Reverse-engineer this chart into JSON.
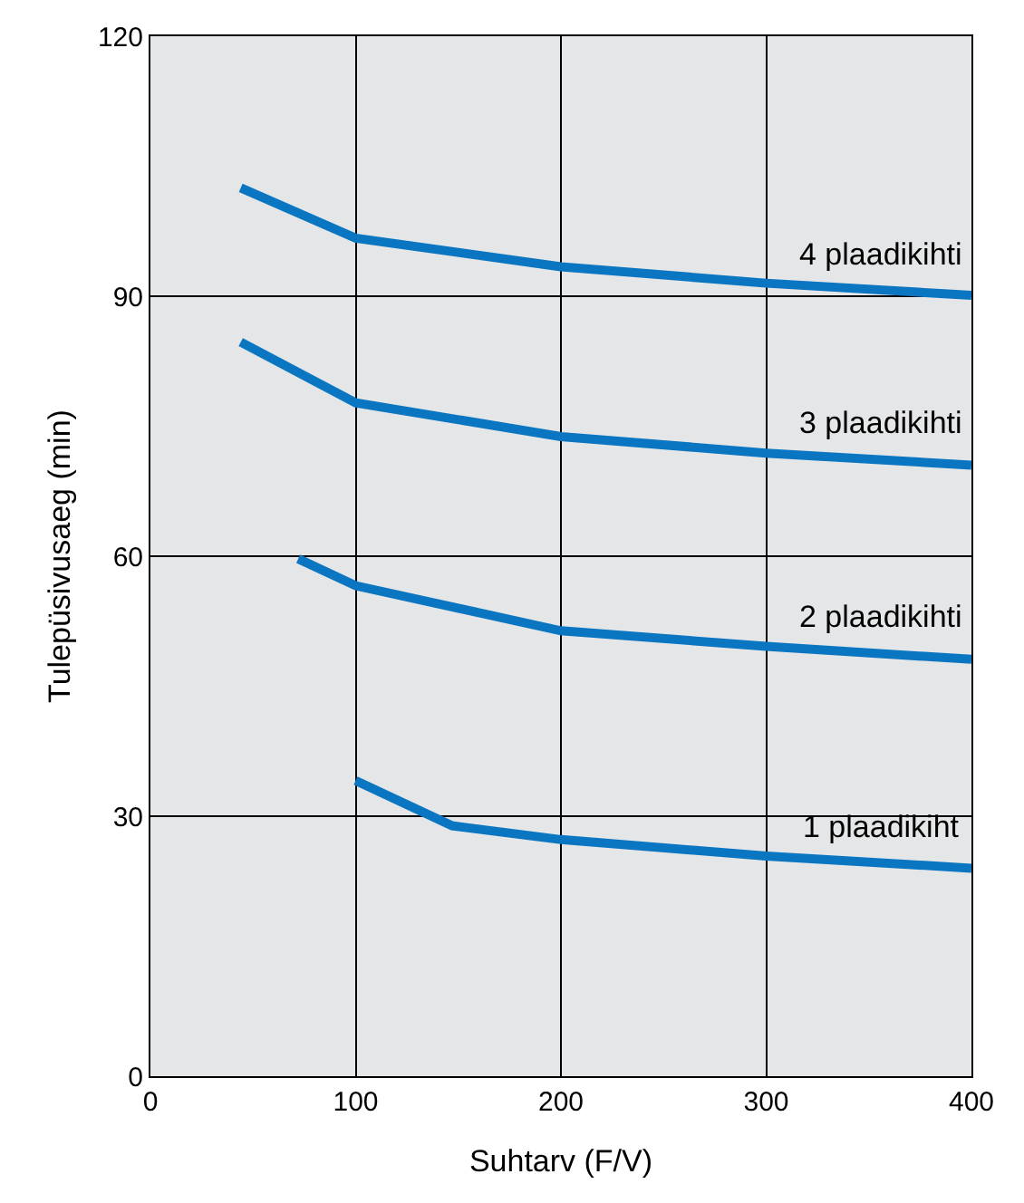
{
  "chart_data": {
    "type": "line",
    "xlabel": "Suhtarv (F/V)",
    "ylabel": "Tulepüsivusaeg (min)",
    "xlim": [
      0,
      400
    ],
    "ylim": [
      0,
      120
    ],
    "xticks": [
      0,
      100,
      200,
      300,
      400
    ],
    "yticks": [
      0,
      30,
      60,
      90,
      120
    ],
    "grid": true,
    "legend": false,
    "marker": "none",
    "line_style": "solid",
    "series": [
      {
        "name": "4 plaadikihti",
        "color": "#0a76c2",
        "x": [
          44,
          100,
          200,
          300,
          400
        ],
        "values": [
          102.5,
          96.7,
          93.4,
          91.5,
          90.1
        ]
      },
      {
        "name": "3 plaadikihti",
        "color": "#0a76c2",
        "x": [
          44,
          100,
          200,
          300,
          400
        ],
        "values": [
          84.7,
          77.7,
          73.8,
          71.9,
          70.5
        ]
      },
      {
        "name": "2 plaadikihti",
        "color": "#0a76c2",
        "x": [
          72,
          100,
          200,
          300,
          400
        ],
        "values": [
          59.7,
          56.6,
          51.4,
          49.6,
          48.1
        ]
      },
      {
        "name": "1 plaadikiht",
        "color": "#0a76c2",
        "x": [
          100,
          147,
          200,
          300,
          400
        ],
        "values": [
          34.1,
          28.9,
          27.3,
          25.4,
          24.0
        ]
      }
    ]
  }
}
